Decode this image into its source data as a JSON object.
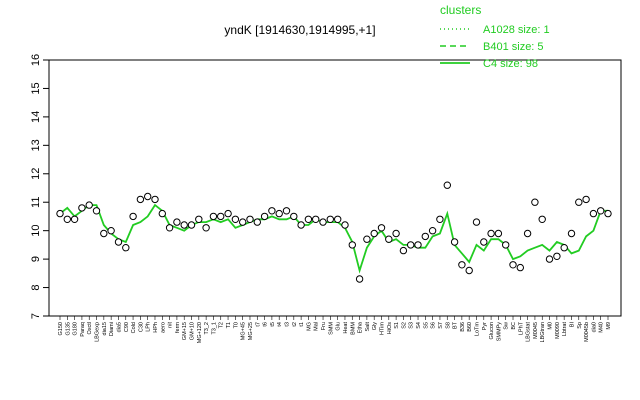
{
  "chart_data": {
    "type": "line",
    "title": "yndK [1914630,1914995,+1]",
    "xlabel": "",
    "ylabel": "",
    "ylim": [
      7,
      16
    ],
    "yticks": [
      7,
      8,
      9,
      10,
      11,
      12,
      13,
      14,
      15,
      16
    ],
    "grid": false,
    "legend": {
      "title": "clusters",
      "placement": "top-right",
      "entries": [
        {
          "label": "A1028 size: 1",
          "style": "dotted"
        },
        {
          "label": "B401 size: 5",
          "style": "dashed"
        },
        {
          "label": "C4 size: 98",
          "style": "solid"
        }
      ]
    },
    "line_color": "#22cc22",
    "point_fill": "#ffffff",
    "point_stroke": "#000000",
    "x_labels": [
      "G150",
      "G135",
      "G180",
      "Paraq",
      "Oxctl",
      "LBGexp",
      "dia15",
      "Diami",
      "dia5",
      "C90",
      "Cold",
      "C30",
      "LPh",
      "HPh",
      "aero",
      "nit",
      "ferm",
      "GM+15",
      "GM+10",
      "MG+120",
      "T3_2",
      "T3_1",
      "T2",
      "T1",
      "T0",
      "MG+45",
      "MG+25",
      "t7",
      "t6",
      "t5",
      "t4",
      "t3",
      "t2",
      "t1",
      "MG",
      "Mal",
      "Fru",
      "SMM",
      "Glu",
      "Heat",
      "BMM",
      "Etha",
      "Salt",
      "Gly",
      "HTim",
      "HiOs",
      "S1",
      "S2",
      "S3",
      "S4",
      "S5",
      "S6",
      "S7",
      "S8",
      "BT",
      "B36",
      "B60",
      "LoTm",
      "Pyr",
      "Glucon",
      "SMMPy",
      "Sw",
      "BC",
      "LPhT",
      "LBGstat",
      "M0045",
      "LBGtran",
      "M0",
      "M0090",
      "Lbtrat",
      "BI",
      "Sp",
      "M0045b",
      "dia0",
      "M40",
      "M9"
    ],
    "series": [
      {
        "name": "median",
        "values": [
          10.6,
          10.8,
          10.5,
          10.7,
          10.9,
          10.9,
          10.2,
          9.9,
          9.7,
          9.6,
          10.2,
          10.3,
          10.5,
          10.9,
          10.7,
          10.2,
          10.1,
          10.0,
          10.2,
          10.3,
          10.3,
          10.4,
          10.3,
          10.4,
          10.1,
          10.2,
          10.3,
          10.4,
          10.4,
          10.5,
          10.4,
          10.4,
          10.5,
          10.2,
          10.2,
          10.4,
          10.3,
          10.3,
          10.3,
          10.1,
          9.6,
          8.6,
          9.4,
          9.8,
          10.0,
          9.6,
          9.7,
          9.5,
          9.5,
          9.4,
          9.4,
          9.8,
          9.9,
          10.6,
          9.5,
          9.2,
          8.9,
          9.5,
          9.3,
          9.7,
          9.7,
          9.5,
          9.0,
          9.1,
          9.3,
          9.4,
          9.5,
          9.3,
          9.6,
          9.5,
          9.2,
          9.3,
          9.8,
          10.0,
          10.7,
          10.7
        ]
      },
      {
        "name": "samples",
        "values": [
          10.6,
          10.4,
          10.4,
          10.8,
          10.9,
          10.7,
          9.9,
          10.0,
          9.6,
          9.4,
          10.5,
          11.1,
          11.2,
          11.1,
          10.6,
          10.1,
          10.3,
          10.2,
          10.2,
          10.4,
          10.1,
          10.5,
          10.5,
          10.6,
          10.4,
          10.3,
          10.4,
          10.3,
          10.5,
          10.7,
          10.6,
          10.7,
          10.5,
          10.2,
          10.4,
          10.4,
          10.3,
          10.4,
          10.4,
          10.2,
          9.5,
          8.3,
          9.7,
          9.9,
          10.1,
          9.7,
          9.9,
          9.3,
          9.5,
          9.5,
          9.8,
          10.0,
          10.4,
          11.6,
          9.6,
          8.8,
          8.6,
          10.3,
          9.6,
          9.9,
          9.9,
          9.5,
          8.8,
          8.7,
          9.9,
          11.0,
          10.4,
          9.0,
          9.1,
          9.4,
          9.9,
          11.0,
          11.1,
          10.6,
          10.7,
          10.6
        ]
      }
    ]
  }
}
